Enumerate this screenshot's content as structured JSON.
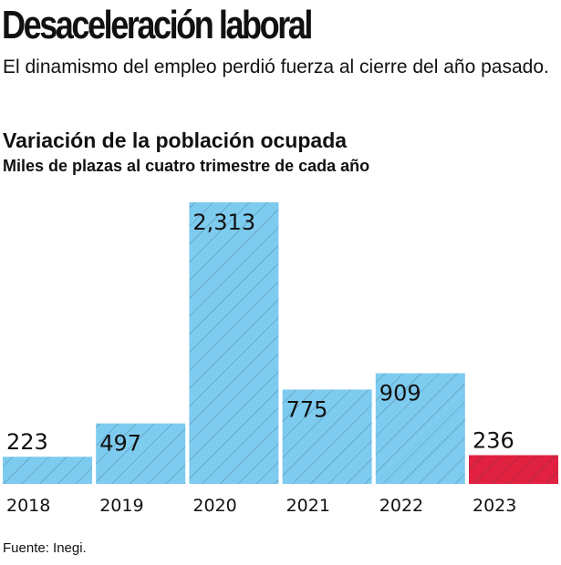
{
  "header": {
    "title": "Desaceleración laboral",
    "subtitle": "El dinamismo del empleo perdió fuerza al cierre del año pasado."
  },
  "chart_data": {
    "type": "bar",
    "title": "Variación de la población ocupada",
    "subtitle": "Miles de plazas al cuatro trimestre de cada año",
    "categories": [
      "2018",
      "2019",
      "2020",
      "2021",
      "2022",
      "2023"
    ],
    "values": [
      223,
      497,
      2313,
      775,
      909,
      236
    ],
    "data_labels": [
      "223",
      "497",
      "2,313",
      "775",
      "909",
      "236"
    ],
    "colors": [
      "#7ecbf0",
      "#7ecbf0",
      "#7ecbf0",
      "#7ecbf0",
      "#7ecbf0",
      "#e0213f"
    ],
    "grid": false
  },
  "footer": {
    "source": "Fuente: Inegi."
  }
}
